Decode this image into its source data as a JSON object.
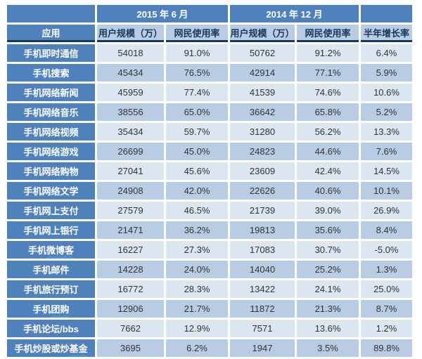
{
  "chart_data": {
    "type": "table",
    "column_groups": [
      {
        "label": "",
        "span": 1
      },
      {
        "label": "2015 年 6 月",
        "span": 2
      },
      {
        "label": "2014 年 12 月",
        "span": 2
      },
      {
        "label": "",
        "span": 1
      }
    ],
    "columns": [
      "应用",
      "用户规模（万）",
      "网民使用率",
      "用户规模（万）",
      "网民使用率",
      "半年增长率"
    ],
    "rows": [
      {
        "cells": [
          "手机即时通信",
          "54018",
          "91.0%",
          "50762",
          "91.2%",
          "6.4%"
        ]
      },
      {
        "cells": [
          "手机搜索",
          "45434",
          "76.5%",
          "42914",
          "77.1%",
          "5.9%"
        ]
      },
      {
        "cells": [
          "手机网络新闻",
          "45959",
          "77.4%",
          "41539",
          "74.6%",
          "10.6%"
        ]
      },
      {
        "cells": [
          "手机网络音乐",
          "38556",
          "65.0%",
          "36642",
          "65.8%",
          "5.2%"
        ]
      },
      {
        "cells": [
          "手机网络视频",
          "35434",
          "59.7%",
          "31280",
          "56.2%",
          "13.3%"
        ]
      },
      {
        "cells": [
          "手机网络游戏",
          "26699",
          "45.0%",
          "24823",
          "44.6%",
          "7.6%"
        ]
      },
      {
        "cells": [
          "手机网络购物",
          "27041",
          "45.6%",
          "23609",
          "42.4%",
          "14.5%"
        ]
      },
      {
        "cells": [
          "手机网络文学",
          "24908",
          "42.0%",
          "22626",
          "40.6%",
          "10.1%"
        ]
      },
      {
        "cells": [
          "手机网上支付",
          "27579",
          "46.5%",
          "21739",
          "39.0%",
          "26.9%"
        ]
      },
      {
        "cells": [
          "手机网上银行",
          "21471",
          "36.2%",
          "19813",
          "35.6%",
          "8.4%"
        ]
      },
      {
        "cells": [
          "手机微博客",
          "16227",
          "27.3%",
          "17083",
          "30.7%",
          "-5.0%"
        ],
        "underline": "微博客"
      },
      {
        "cells": [
          "手机邮件",
          "14228",
          "24.0%",
          "14040",
          "25.2%",
          "1.3%"
        ]
      },
      {
        "cells": [
          "手机旅行预订",
          "16772",
          "28.3%",
          "13422",
          "24.1%",
          "25.0%"
        ]
      },
      {
        "cells": [
          "手机团购",
          "12906",
          "21.7%",
          "11872",
          "21.3%",
          "8.7%"
        ],
        "underline": "团购"
      },
      {
        "cells": [
          "手机论坛/bbs",
          "7662",
          "12.9%",
          "7571",
          "13.6%",
          "1.2%"
        ]
      },
      {
        "cells": [
          "手机炒股或炒基金",
          "3695",
          "6.2%",
          "1947",
          "3.5%",
          "89.8%"
        ],
        "underline": "基金"
      }
    ]
  },
  "colors": {
    "header_blue": "#4f81bd",
    "band_light": "#dce6f1",
    "band_medium": "#b8cce4",
    "divider_navy": "#17375d",
    "squiggle_blue": "#4ba6e8"
  }
}
